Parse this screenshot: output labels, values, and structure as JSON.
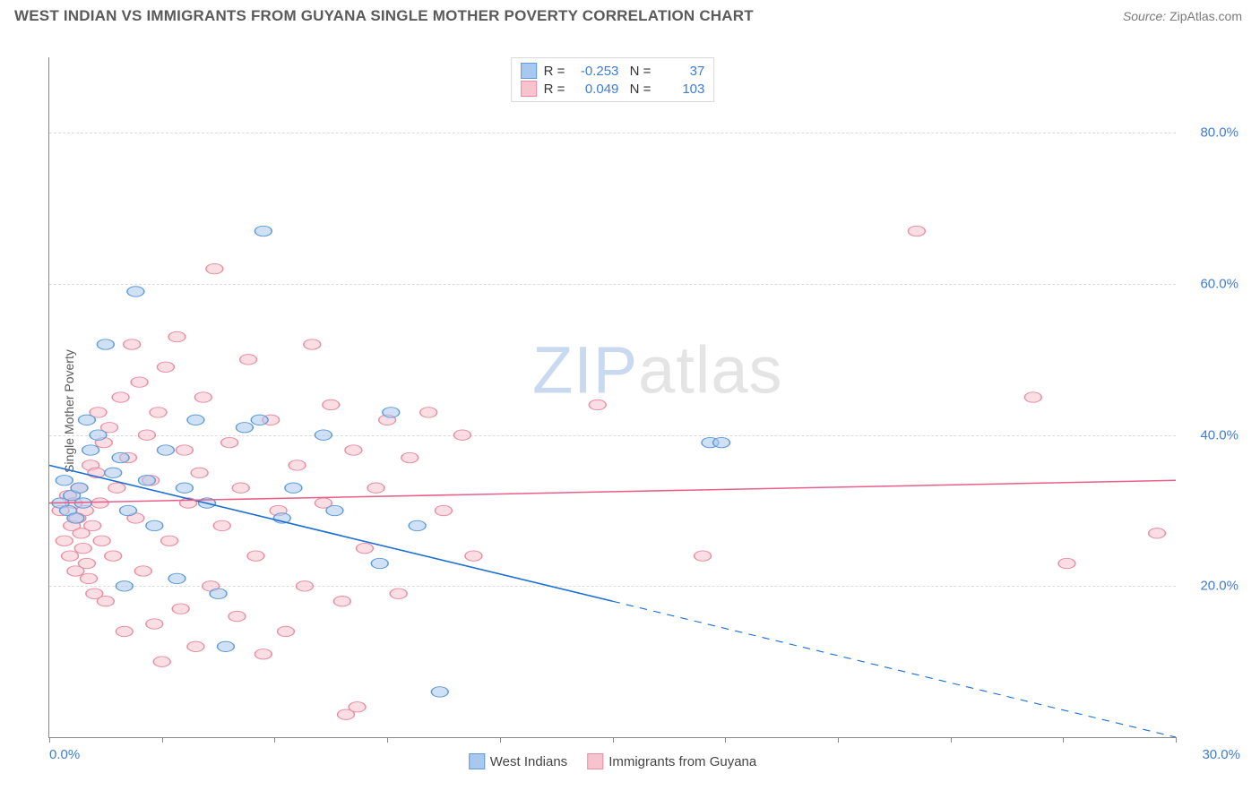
{
  "title": "WEST INDIAN VS IMMIGRANTS FROM GUYANA SINGLE MOTHER POVERTY CORRELATION CHART",
  "source_label": "Source:",
  "source_name": "ZipAtlas.com",
  "ylabel": "Single Mother Poverty",
  "watermark_zip": "ZIP",
  "watermark_rest": "atlas",
  "chart": {
    "type": "scatter",
    "xlim": [
      0,
      30
    ],
    "ylim": [
      0,
      90
    ],
    "x_tick_positions": [
      0,
      3,
      6,
      9,
      12,
      15,
      18,
      21,
      24,
      27,
      30
    ],
    "x_shown_labels": {
      "0": "0.0%",
      "30": "30.0%"
    },
    "y_gridlines": [
      20,
      40,
      60,
      80
    ],
    "y_tick_labels": {
      "20": "20.0%",
      "40": "40.0%",
      "60": "60.0%",
      "80": "80.0%"
    },
    "background_color": "#ffffff",
    "grid_color": "#dcdcdc",
    "axis_color": "#888888",
    "tick_label_color": "#3d7cd9",
    "marker_radius": 7.5,
    "marker_opacity": 0.55,
    "series": [
      {
        "name": "West Indians",
        "color_fill": "#a9c8ef",
        "color_stroke": "#5e9bd8",
        "r": "-0.253",
        "n": "37",
        "trend": {
          "start": [
            0,
            36
          ],
          "end": [
            30,
            0
          ],
          "solid_until_x": 15,
          "color": "#1b6fd3",
          "width": 2
        },
        "points": [
          [
            0.3,
            31
          ],
          [
            0.4,
            34
          ],
          [
            0.5,
            30
          ],
          [
            0.6,
            32
          ],
          [
            0.7,
            29
          ],
          [
            0.8,
            33
          ],
          [
            0.9,
            31
          ],
          [
            1.0,
            42
          ],
          [
            1.1,
            38
          ],
          [
            1.3,
            40
          ],
          [
            1.5,
            52
          ],
          [
            1.7,
            35
          ],
          [
            1.9,
            37
          ],
          [
            2.0,
            20
          ],
          [
            2.1,
            30
          ],
          [
            2.3,
            59
          ],
          [
            2.6,
            34
          ],
          [
            2.8,
            28
          ],
          [
            3.1,
            38
          ],
          [
            3.4,
            21
          ],
          [
            3.6,
            33
          ],
          [
            3.9,
            42
          ],
          [
            4.2,
            31
          ],
          [
            4.5,
            19
          ],
          [
            4.7,
            12
          ],
          [
            5.2,
            41
          ],
          [
            5.6,
            42
          ],
          [
            5.7,
            67
          ],
          [
            6.2,
            29
          ],
          [
            6.5,
            33
          ],
          [
            7.3,
            40
          ],
          [
            7.6,
            30
          ],
          [
            8.8,
            23
          ],
          [
            9.1,
            43
          ],
          [
            9.8,
            28
          ],
          [
            10.4,
            6
          ],
          [
            17.6,
            39
          ],
          [
            17.9,
            39
          ]
        ]
      },
      {
        "name": "Immigrants from Guyana",
        "color_fill": "#f6c3ce",
        "color_stroke": "#e98da1",
        "r": "0.049",
        "n": "103",
        "trend": {
          "start": [
            0,
            31
          ],
          "end": [
            30,
            34
          ],
          "solid_until_x": 30,
          "color": "#e85f8a",
          "width": 2
        },
        "points": [
          [
            0.3,
            30
          ],
          [
            0.4,
            26
          ],
          [
            0.5,
            32
          ],
          [
            0.55,
            24
          ],
          [
            0.6,
            28
          ],
          [
            0.65,
            31
          ],
          [
            0.7,
            22
          ],
          [
            0.75,
            29
          ],
          [
            0.8,
            33
          ],
          [
            0.85,
            27
          ],
          [
            0.9,
            25
          ],
          [
            0.95,
            30
          ],
          [
            1.0,
            23
          ],
          [
            1.05,
            21
          ],
          [
            1.1,
            36
          ],
          [
            1.15,
            28
          ],
          [
            1.2,
            19
          ],
          [
            1.25,
            35
          ],
          [
            1.3,
            43
          ],
          [
            1.35,
            31
          ],
          [
            1.4,
            26
          ],
          [
            1.45,
            39
          ],
          [
            1.5,
            18
          ],
          [
            1.6,
            41
          ],
          [
            1.7,
            24
          ],
          [
            1.8,
            33
          ],
          [
            1.9,
            45
          ],
          [
            2.0,
            14
          ],
          [
            2.1,
            37
          ],
          [
            2.2,
            52
          ],
          [
            2.3,
            29
          ],
          [
            2.4,
            47
          ],
          [
            2.5,
            22
          ],
          [
            2.6,
            40
          ],
          [
            2.7,
            34
          ],
          [
            2.8,
            15
          ],
          [
            2.9,
            43
          ],
          [
            3.0,
            10
          ],
          [
            3.1,
            49
          ],
          [
            3.2,
            26
          ],
          [
            3.4,
            53
          ],
          [
            3.5,
            17
          ],
          [
            3.6,
            38
          ],
          [
            3.7,
            31
          ],
          [
            3.9,
            12
          ],
          [
            4.0,
            35
          ],
          [
            4.1,
            45
          ],
          [
            4.3,
            20
          ],
          [
            4.4,
            62
          ],
          [
            4.6,
            28
          ],
          [
            4.8,
            39
          ],
          [
            5.0,
            16
          ],
          [
            5.1,
            33
          ],
          [
            5.3,
            50
          ],
          [
            5.5,
            24
          ],
          [
            5.7,
            11
          ],
          [
            5.9,
            42
          ],
          [
            6.1,
            30
          ],
          [
            6.3,
            14
          ],
          [
            6.6,
            36
          ],
          [
            6.8,
            20
          ],
          [
            7.0,
            52
          ],
          [
            7.3,
            31
          ],
          [
            7.5,
            44
          ],
          [
            7.8,
            18
          ],
          [
            7.9,
            3
          ],
          [
            8.1,
            38
          ],
          [
            8.2,
            4
          ],
          [
            8.4,
            25
          ],
          [
            8.7,
            33
          ],
          [
            9.0,
            42
          ],
          [
            9.3,
            19
          ],
          [
            9.6,
            37
          ],
          [
            10.1,
            43
          ],
          [
            10.5,
            30
          ],
          [
            11.0,
            40
          ],
          [
            11.3,
            24
          ],
          [
            14.6,
            44
          ],
          [
            17.4,
            24
          ],
          [
            23.1,
            67
          ],
          [
            26.2,
            45
          ],
          [
            27.1,
            23
          ],
          [
            29.5,
            27
          ]
        ]
      }
    ]
  },
  "legend_bottom": [
    {
      "label": "West Indians",
      "fill": "#a9c8ef",
      "stroke": "#5e9bd8"
    },
    {
      "label": "Immigrants from Guyana",
      "fill": "#f6c3ce",
      "stroke": "#e98da1"
    }
  ]
}
